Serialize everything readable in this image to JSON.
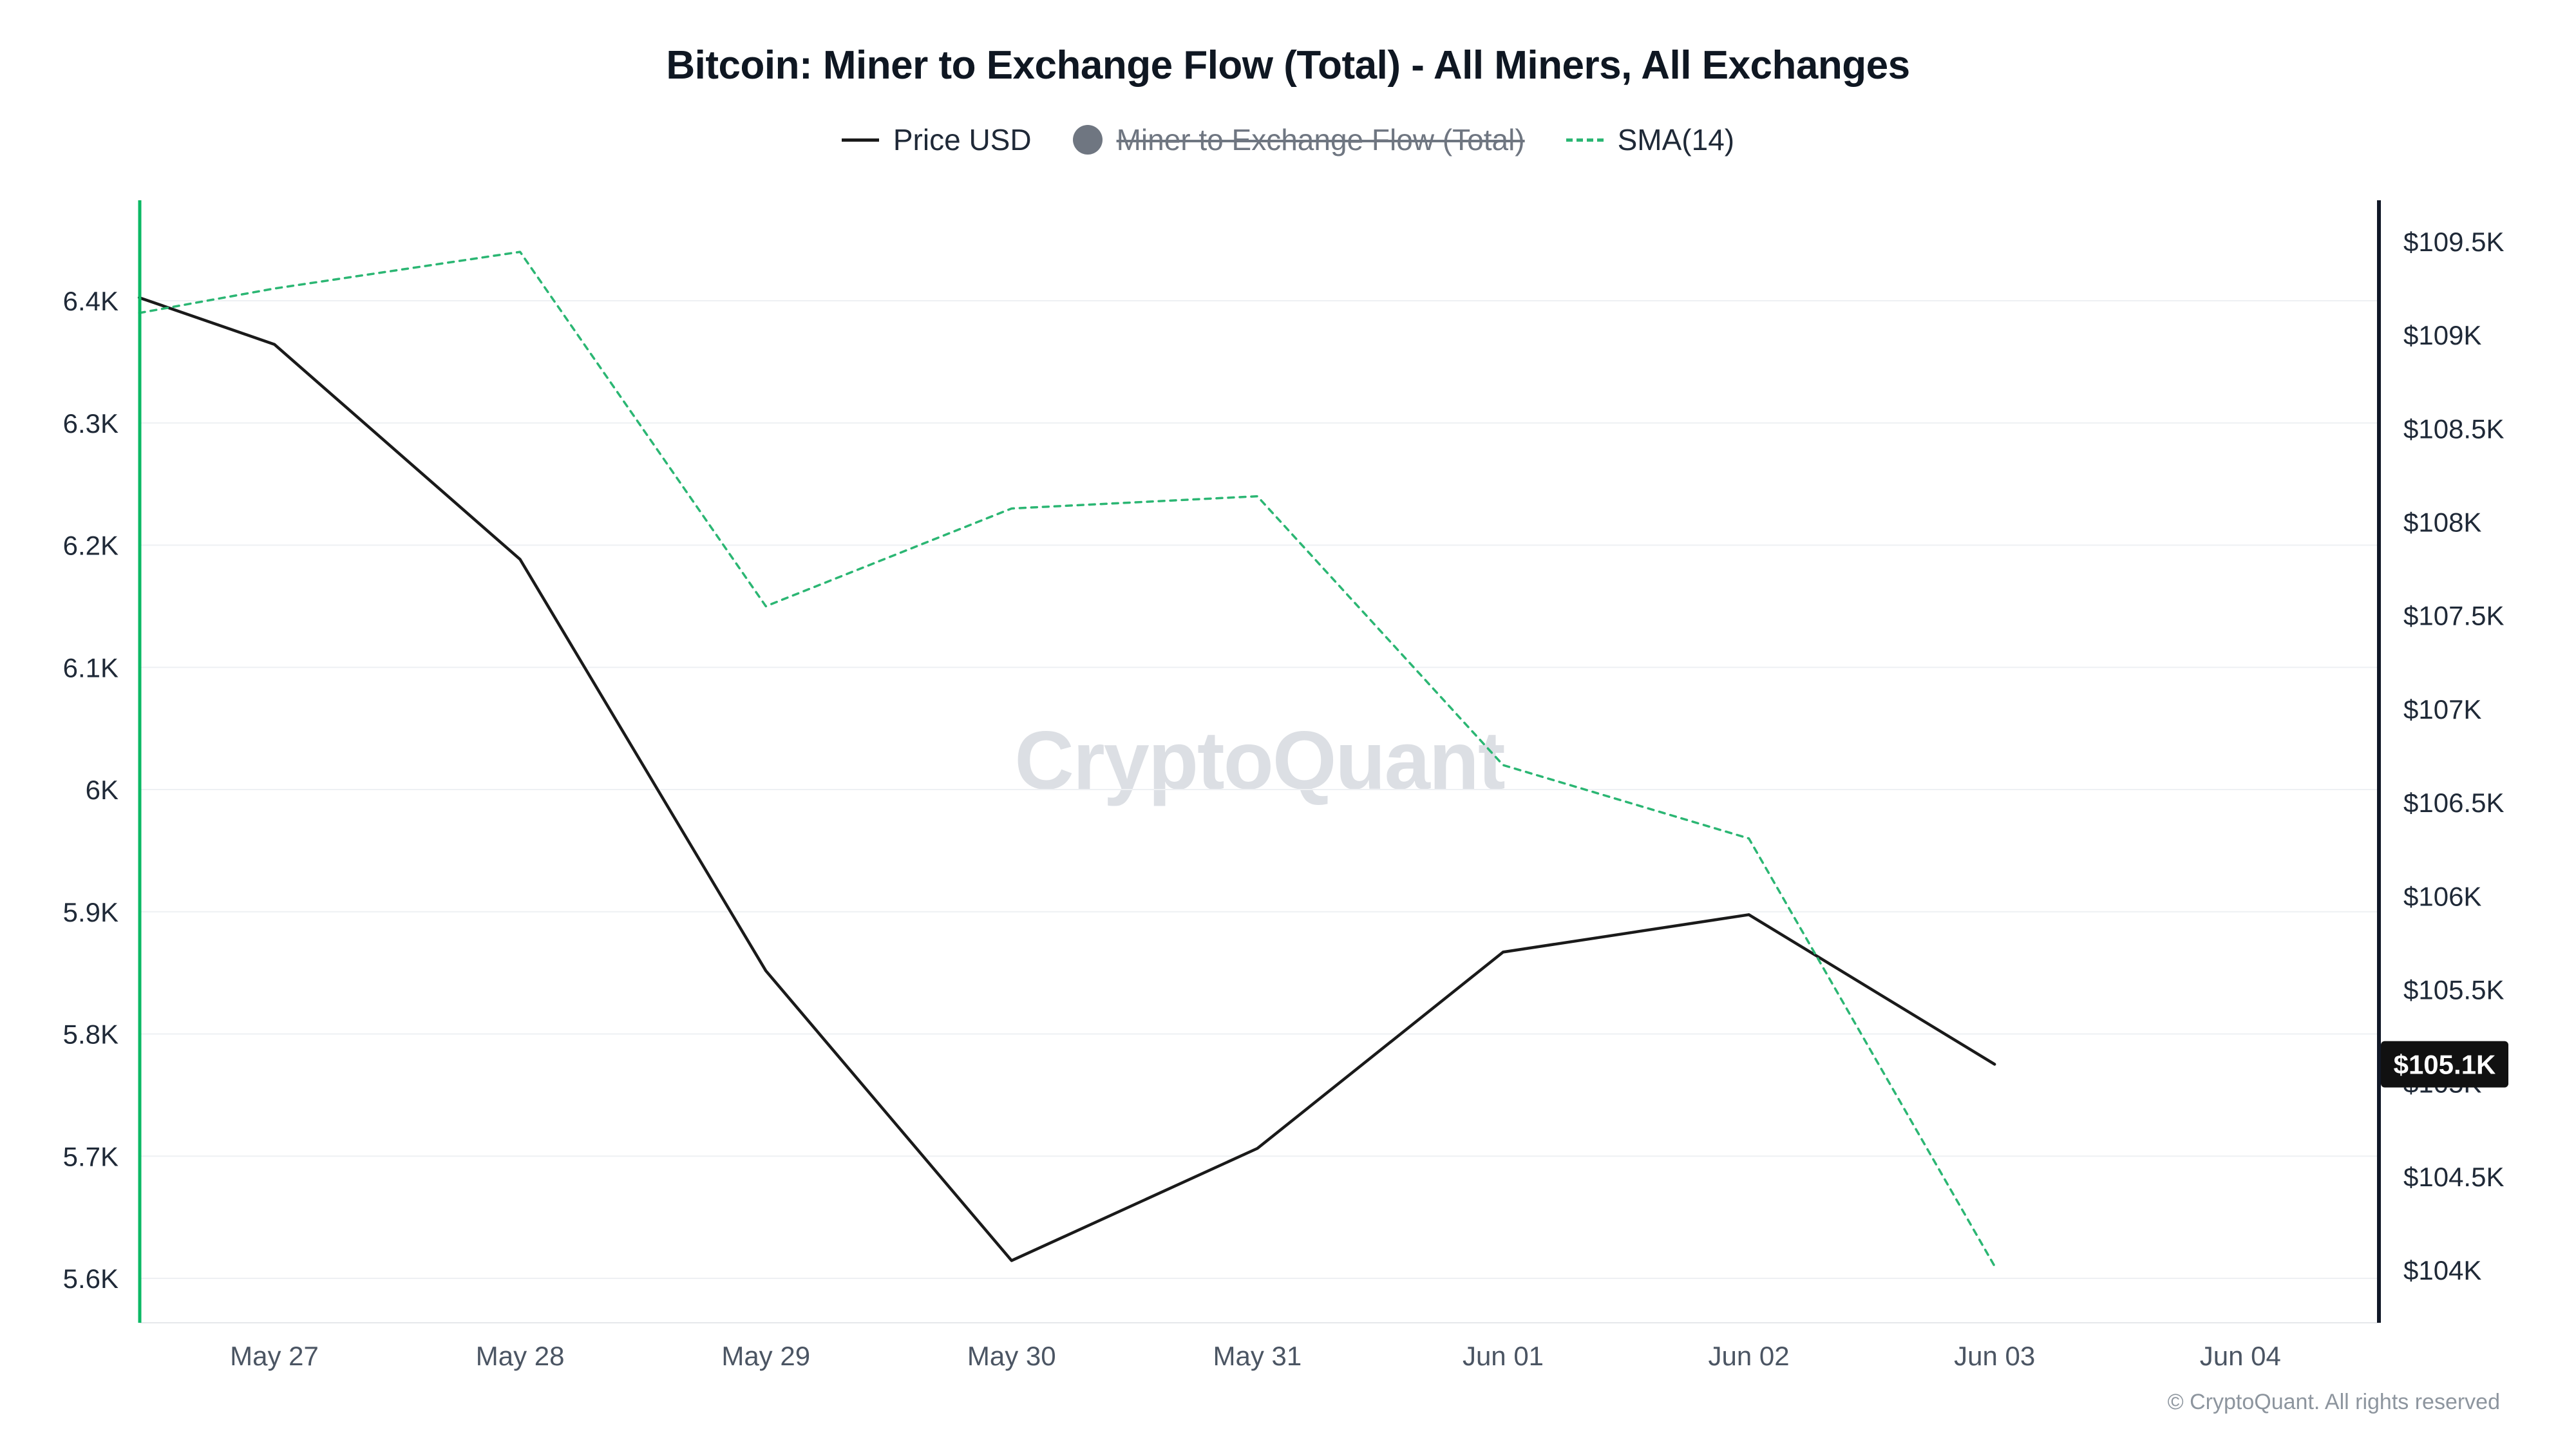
{
  "chart_data": {
    "type": "line",
    "title": "Bitcoin: Miner to Exchange Flow (Total) - All Miners, All Exchanges",
    "watermark": "CryptoQuant",
    "categories": [
      "May 27",
      "May 28",
      "May 29",
      "May 30",
      "May 31",
      "Jun 01",
      "Jun 02",
      "Jun 03",
      "Jun 04"
    ],
    "x_index": [
      -0.55,
      0,
      1,
      2,
      3,
      4,
      5,
      6,
      7
    ],
    "left_axis": {
      "tick_labels": [
        "6.4K",
        "6.3K",
        "6.2K",
        "6.1K",
        "6K",
        "5.9K",
        "5.8K",
        "5.7K",
        "5.6K"
      ],
      "tick_values": [
        6.4,
        6.3,
        6.2,
        6.1,
        6.0,
        5.9,
        5.8,
        5.7,
        5.6
      ]
    },
    "right_axis": {
      "tick_labels": [
        "$109.5K",
        "$109K",
        "$108.5K",
        "$108K",
        "$107.5K",
        "$107K",
        "$106.5K",
        "$106K",
        "$105.5K",
        "$105K",
        "$104.5K",
        "$104K"
      ],
      "tick_values": [
        109.5,
        109,
        108.5,
        108,
        107.5,
        107,
        106.5,
        106,
        105.5,
        105,
        104.5,
        104
      ]
    },
    "series": [
      {
        "name": "Price USD",
        "axis": "right",
        "color": "#1a1a1a",
        "style": "solid",
        "values": [
          109.2,
          108.95,
          107.8,
          105.6,
          104.05,
          104.65,
          105.7,
          105.9,
          105.1
        ]
      },
      {
        "name": "Miner to Exchange Flow (Total)",
        "axis": "left",
        "color": "#6f7681",
        "style": "solid",
        "disabled": true,
        "values": []
      },
      {
        "name": "SMA(14)",
        "axis": "left",
        "color": "#2bb673",
        "style": "dashed",
        "values": [
          6.39,
          6.41,
          6.44,
          6.15,
          6.23,
          6.24,
          6.02,
          5.96,
          5.61
        ]
      }
    ],
    "last_price_label": "$105.1K",
    "last_price_value": 105.1,
    "colors": {
      "price_line": "#1a1a1a",
      "sma_line": "#2bb673",
      "left_spine": "#0bb864",
      "right_spine": "#111827",
      "grid": "#eef0f3",
      "badge_bg": "#111111",
      "badge_text": "#ffffff",
      "watermark": "#dcdfe4",
      "axis_label": "#1f2937",
      "x_label": "#4b5563"
    }
  },
  "legend": {
    "items": [
      {
        "label": "Price USD",
        "color": "#1a1a1a",
        "type": "line",
        "disabled": false
      },
      {
        "label": "Miner to Exchange Flow (Total)",
        "color": "#6f7681",
        "type": "circle",
        "disabled": true
      },
      {
        "label": "SMA(14)",
        "color": "#2bb673",
        "type": "dashed-line",
        "disabled": false
      }
    ]
  },
  "footer": {
    "copyright": "© CryptoQuant. All rights reserved"
  }
}
